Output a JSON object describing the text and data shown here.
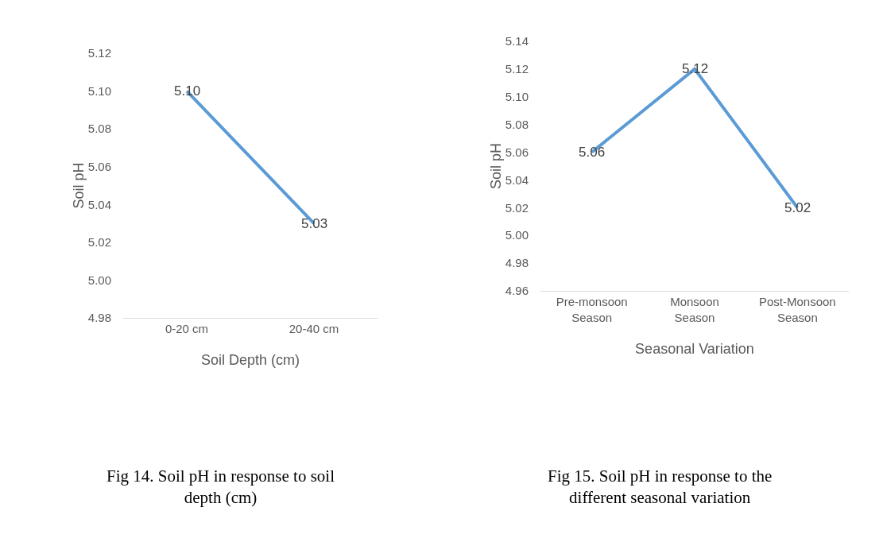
{
  "chart_data": [
    {
      "type": "line",
      "categories": [
        "0-20 cm",
        "20-40 cm"
      ],
      "values": [
        5.1,
        5.03
      ],
      "color": "#5b9bd5",
      "xlabel": "Soil Depth (cm)",
      "ylabel": "Soil pH",
      "ylim": [
        4.98,
        5.12
      ],
      "yticks": [
        {
          "value": 4.98,
          "label": "4.98"
        },
        {
          "value": 5.0,
          "label": "5.00"
        },
        {
          "value": 5.02,
          "label": "5.02"
        },
        {
          "value": 5.04,
          "label": "5.04"
        },
        {
          "value": 5.06,
          "label": "5.06"
        },
        {
          "value": 5.08,
          "label": "5.08"
        },
        {
          "value": 5.1,
          "label": "5.10"
        },
        {
          "value": 5.12,
          "label": "5.12"
        }
      ],
      "value_labels": [
        "5.10",
        "5.03"
      ],
      "grid": false,
      "marker": "none",
      "annotations": [
        "Fig 14. Soil pH in response to soil depth (cm)"
      ]
    },
    {
      "type": "line",
      "categories": [
        "Pre-monsoon Season",
        "Monsoon Season",
        "Post-Monsoon Season"
      ],
      "values": [
        5.06,
        5.12,
        5.02
      ],
      "color": "#5b9bd5",
      "xlabel": "Seasonal Variation",
      "ylabel": "Soil pH",
      "ylim": [
        4.96,
        5.14
      ],
      "yticks": [
        {
          "value": 4.96,
          "label": "4.96"
        },
        {
          "value": 4.98,
          "label": "4.98"
        },
        {
          "value": 5.0,
          "label": "5.00"
        },
        {
          "value": 5.02,
          "label": "5.02"
        },
        {
          "value": 5.04,
          "label": "5.04"
        },
        {
          "value": 5.06,
          "label": "5.06"
        },
        {
          "value": 5.08,
          "label": "5.08"
        },
        {
          "value": 5.1,
          "label": "5.10"
        },
        {
          "value": 5.12,
          "label": "5.12"
        },
        {
          "value": 5.14,
          "label": "5.14"
        }
      ],
      "value_labels": [
        "5.06",
        "5.12",
        "5.02"
      ],
      "grid": false,
      "marker": "none",
      "annotations": [
        "Fig 15. Soil pH in response to the different seasonal variation"
      ]
    }
  ]
}
